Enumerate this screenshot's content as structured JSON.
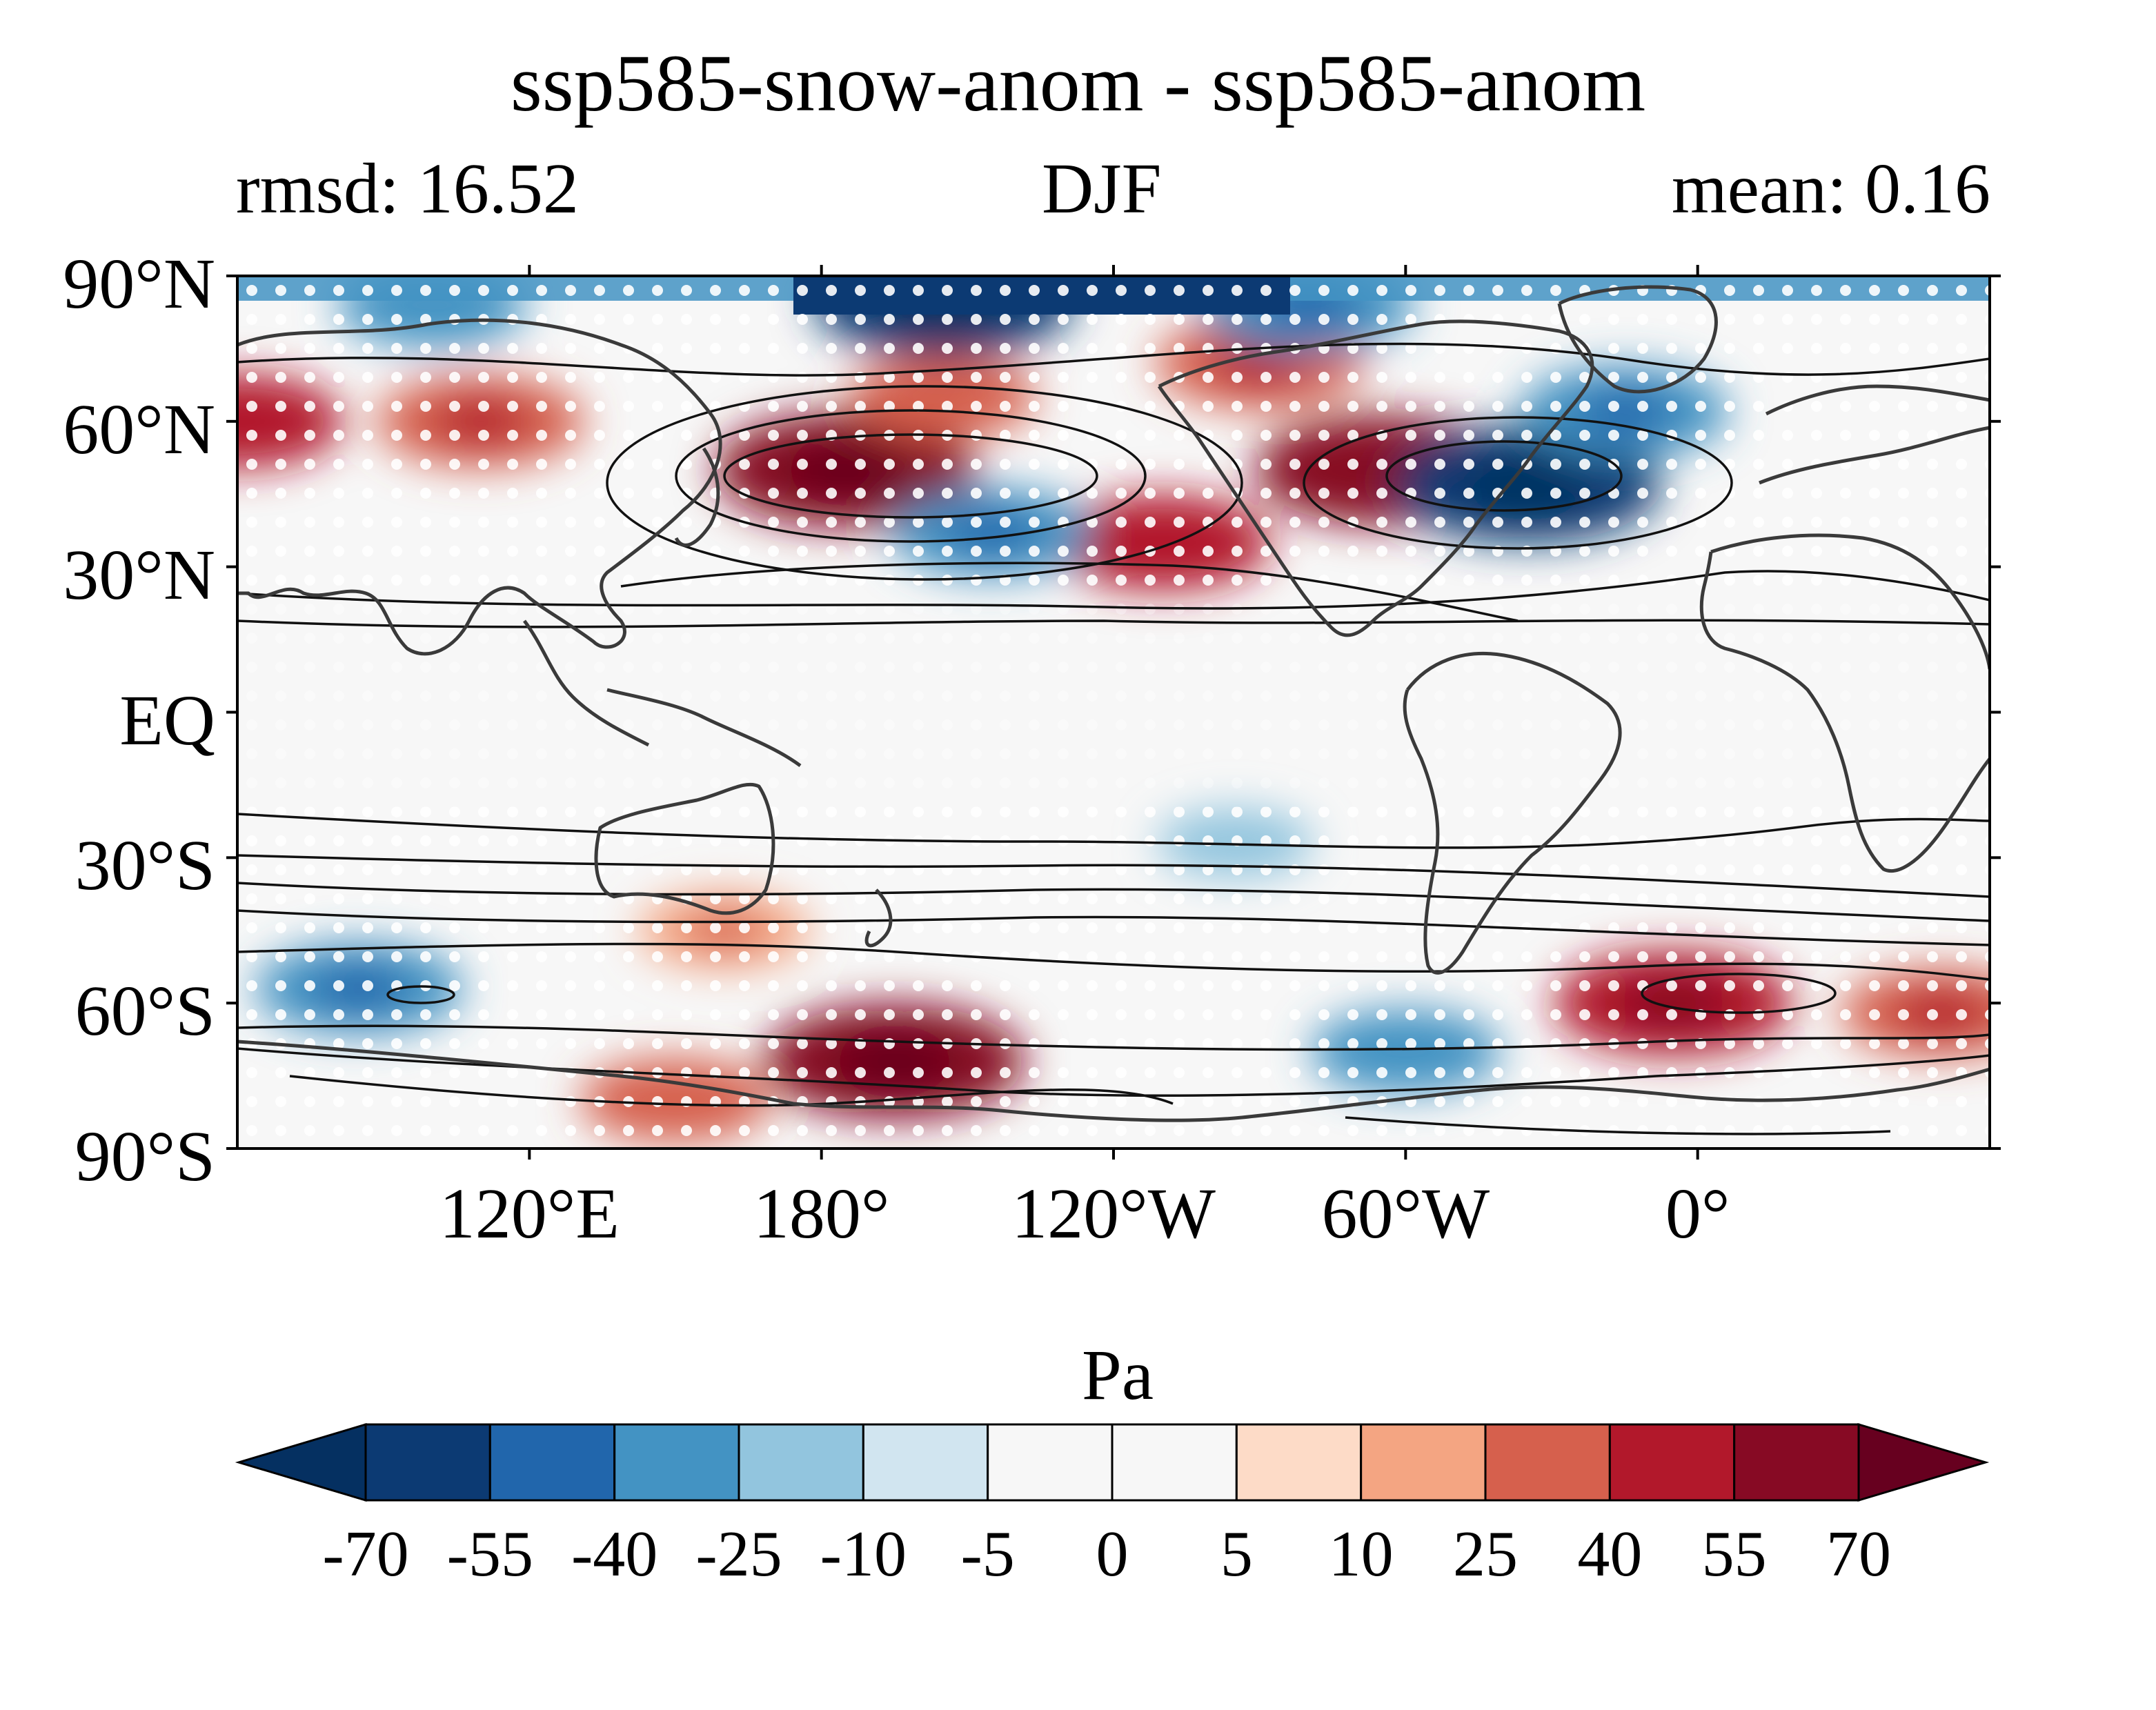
{
  "figure": {
    "title": "ssp585-snow-anom - ssp585-anom",
    "left_stat": "rmsd: 16.52",
    "center_label": "DJF",
    "right_stat": "mean: 0.16"
  },
  "map": {
    "projection": "equirectangular",
    "lon_range": [
      60,
      420
    ],
    "lat_range": [
      -90,
      90
    ],
    "y_ticks": [
      {
        "lat": 90,
        "label": "90°N"
      },
      {
        "lat": 60,
        "label": "60°N"
      },
      {
        "lat": 30,
        "label": "30°N"
      },
      {
        "lat": 0,
        "label": "EQ"
      },
      {
        "lat": -30,
        "label": "30°S"
      },
      {
        "lat": -60,
        "label": "60°S"
      },
      {
        "lat": -90,
        "label": "90°S"
      }
    ],
    "x_ticks": [
      {
        "lon": 120,
        "label": "120°E"
      },
      {
        "lon": 180,
        "label": "180°"
      },
      {
        "lon": 240,
        "label": "120°W"
      },
      {
        "lon": 300,
        "label": "60°W"
      },
      {
        "lon": 360,
        "label": "0°"
      }
    ],
    "fill_field": "difference of pressure anomalies (Pa)",
    "overlay_contours": "climatological pressure (black lines)",
    "stippling": "white dots mark significant regions",
    "coastline_color": "#3a3a3a",
    "anomaly_centers": [
      {
        "lon": 185,
        "lat": 50,
        "value": 62
      },
      {
        "lon": 205,
        "lat": 65,
        "value": 28
      },
      {
        "lon": 250,
        "lat": 35,
        "value": 42
      },
      {
        "lon": 295,
        "lat": 50,
        "value": 58
      },
      {
        "lon": 270,
        "lat": 72,
        "value": 38
      },
      {
        "lon": 325,
        "lat": 47,
        "value": -65
      },
      {
        "lon": 345,
        "lat": 62,
        "value": -38
      },
      {
        "lon": 205,
        "lat": 85,
        "value": -62
      },
      {
        "lon": 280,
        "lat": 84,
        "value": -40
      },
      {
        "lon": 100,
        "lat": 84,
        "value": -30
      },
      {
        "lon": 110,
        "lat": 60,
        "value": 38
      },
      {
        "lon": 60,
        "lat": 60,
        "value": 40
      },
      {
        "lon": 215,
        "lat": 37,
        "value": -35
      },
      {
        "lon": 85,
        "lat": -57,
        "value": -38
      },
      {
        "lon": 195,
        "lat": -72,
        "value": 62
      },
      {
        "lon": 355,
        "lat": -60,
        "value": 52
      },
      {
        "lon": 410,
        "lat": -62,
        "value": 35
      },
      {
        "lon": 150,
        "lat": -80,
        "value": 30
      },
      {
        "lon": 300,
        "lat": -70,
        "value": -30
      },
      {
        "lon": 265,
        "lat": -27,
        "value": -15
      },
      {
        "lon": 160,
        "lat": -45,
        "value": 22
      }
    ]
  },
  "colorbar": {
    "unit_label": "Pa",
    "levels": [
      "-70",
      "-55",
      "-40",
      "-25",
      "-10",
      "-5",
      "0",
      "5",
      "10",
      "25",
      "40",
      "55",
      "70"
    ],
    "colors": [
      "#053061",
      "#0c3a73",
      "#2166ac",
      "#4393c3",
      "#92c5de",
      "#d1e5f0",
      "#f7f7f7",
      "#f7f7f7",
      "#fddbc7",
      "#f4a582",
      "#d6604d",
      "#b2182b",
      "#870a24",
      "#67001f"
    ],
    "extend": "both"
  }
}
